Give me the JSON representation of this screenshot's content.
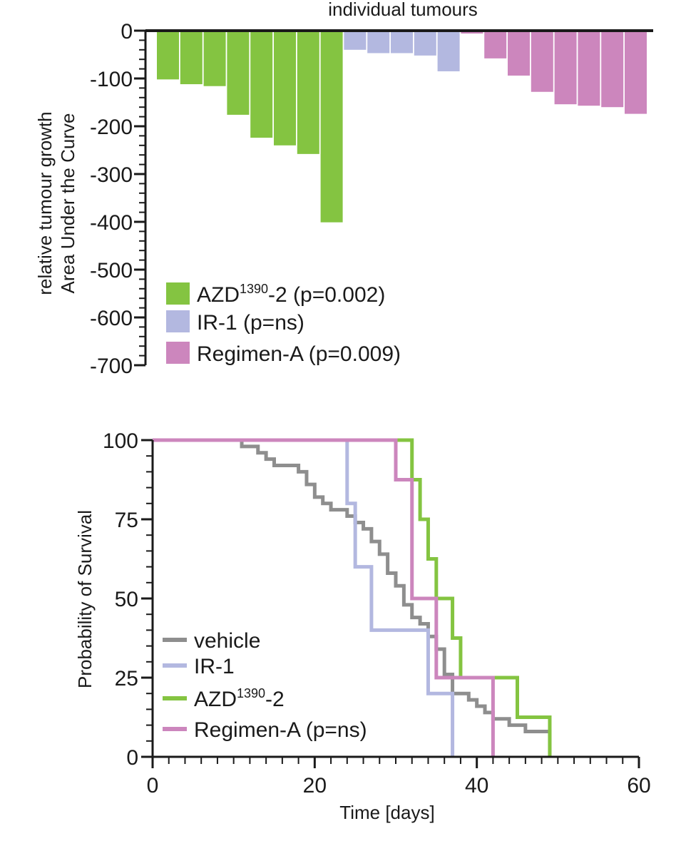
{
  "chart_data": [
    {
      "type": "bar",
      "title": "individual tumours",
      "ylabel_line1": "relative tumour growth",
      "ylabel_line2": "Area Under the Curve",
      "ylim": [
        -700,
        0
      ],
      "yticks": [
        "0",
        "-100",
        "-200",
        "-300",
        "-400",
        "-500",
        "-600",
        "-700"
      ],
      "ytick_values": [
        0,
        -100,
        -200,
        -300,
        -400,
        -500,
        -600,
        -700
      ],
      "minor_tick_step": 20,
      "series": [
        {
          "name": "AZD1390-2",
          "label_base": "AZD",
          "label_sup": "1390",
          "label_suffix": "-2 (p=0.002)",
          "color": "#84c441",
          "values": [
            -102,
            -112,
            -116,
            -176,
            -224,
            -240,
            -258,
            -401
          ]
        },
        {
          "name": "IR-1",
          "label_base": "IR-1 (p=ns)",
          "label_sup": "",
          "label_suffix": "",
          "color": "#b3b8e0",
          "values": [
            -40,
            -47,
            -47,
            -52,
            -85
          ]
        },
        {
          "name": "Regimen-A",
          "label_base": "Regimen-A (p=0.009)",
          "label_sup": "",
          "label_suffix": "",
          "color": "#cc86bd",
          "values": [
            -6,
            -58,
            -94,
            -128,
            -154,
            -157,
            -160,
            -174
          ]
        }
      ],
      "legend": "bottom-left"
    },
    {
      "type": "line",
      "subtype": "kaplan-meier",
      "xlabel": "Time [days]",
      "ylabel": "Probability of Survival",
      "xlim": [
        0,
        60
      ],
      "ylim": [
        0,
        100
      ],
      "xticks": [
        "0",
        "20",
        "40",
        "60"
      ],
      "xtick_values": [
        0,
        20,
        40,
        60
      ],
      "yticks": [
        "0",
        "25",
        "50",
        "75",
        "100"
      ],
      "ytick_values": [
        0,
        25,
        50,
        75,
        100
      ],
      "series": [
        {
          "name": "vehicle",
          "label_base": "vehicle",
          "label_sup": "",
          "label_suffix": "",
          "color": "#8e8e8e",
          "steps": [
            [
              0,
              100
            ],
            [
              8,
              100
            ],
            [
              11,
              98
            ],
            [
              13,
              96
            ],
            [
              14,
              94
            ],
            [
              15,
              92
            ],
            [
              18,
              90
            ],
            [
              19,
              86
            ],
            [
              20,
              82
            ],
            [
              21,
              80
            ],
            [
              22,
              78
            ],
            [
              24,
              76
            ],
            [
              25,
              74
            ],
            [
              26,
              72
            ],
            [
              27,
              68
            ],
            [
              28,
              64
            ],
            [
              29,
              58
            ],
            [
              30,
              54
            ],
            [
              31,
              48
            ],
            [
              32,
              44
            ],
            [
              33,
              42
            ],
            [
              34,
              38
            ],
            [
              35,
              34
            ],
            [
              36,
              26
            ],
            [
              37,
              20
            ],
            [
              39,
              18
            ],
            [
              40,
              16
            ],
            [
              41,
              14
            ],
            [
              42,
              12
            ],
            [
              44,
              10
            ],
            [
              46,
              8
            ],
            [
              49,
              8
            ],
            [
              49,
              0
            ]
          ]
        },
        {
          "name": "IR-1",
          "label_base": "IR-1",
          "label_sup": "",
          "label_suffix": "",
          "color": "#b3b8e0",
          "steps": [
            [
              0,
              100
            ],
            [
              24,
              100
            ],
            [
              24,
              80
            ],
            [
              25,
              80
            ],
            [
              25,
              60
            ],
            [
              27,
              60
            ],
            [
              27,
              40
            ],
            [
              34,
              40
            ],
            [
              34,
              20
            ],
            [
              37,
              20
            ],
            [
              37,
              0
            ]
          ]
        },
        {
          "name": "AZD1390-2",
          "label_base": "AZD",
          "label_sup": "1390",
          "label_suffix": "-2",
          "color": "#84c441",
          "steps": [
            [
              0,
              100
            ],
            [
              32,
              100
            ],
            [
              32,
              87.5
            ],
            [
              33,
              87.5
            ],
            [
              33,
              75
            ],
            [
              34,
              75
            ],
            [
              34,
              62.5
            ],
            [
              35,
              62.5
            ],
            [
              35,
              50
            ],
            [
              37,
              50
            ],
            [
              37,
              37.5
            ],
            [
              38,
              37.5
            ],
            [
              38,
              25
            ],
            [
              45,
              25
            ],
            [
              45,
              12.5
            ],
            [
              49,
              12.5
            ],
            [
              49,
              0
            ]
          ]
        },
        {
          "name": "Regimen-A",
          "label_base": "Regimen-A (p=ns)",
          "label_sup": "",
          "label_suffix": "",
          "color": "#cc86bd",
          "steps": [
            [
              0,
              100
            ],
            [
              30,
              100
            ],
            [
              30,
              87.5
            ],
            [
              32,
              87.5
            ],
            [
              32,
              50
            ],
            [
              35,
              50
            ],
            [
              35,
              25
            ],
            [
              42,
              25
            ],
            [
              42,
              0
            ]
          ]
        }
      ],
      "legend": "bottom-left"
    }
  ]
}
